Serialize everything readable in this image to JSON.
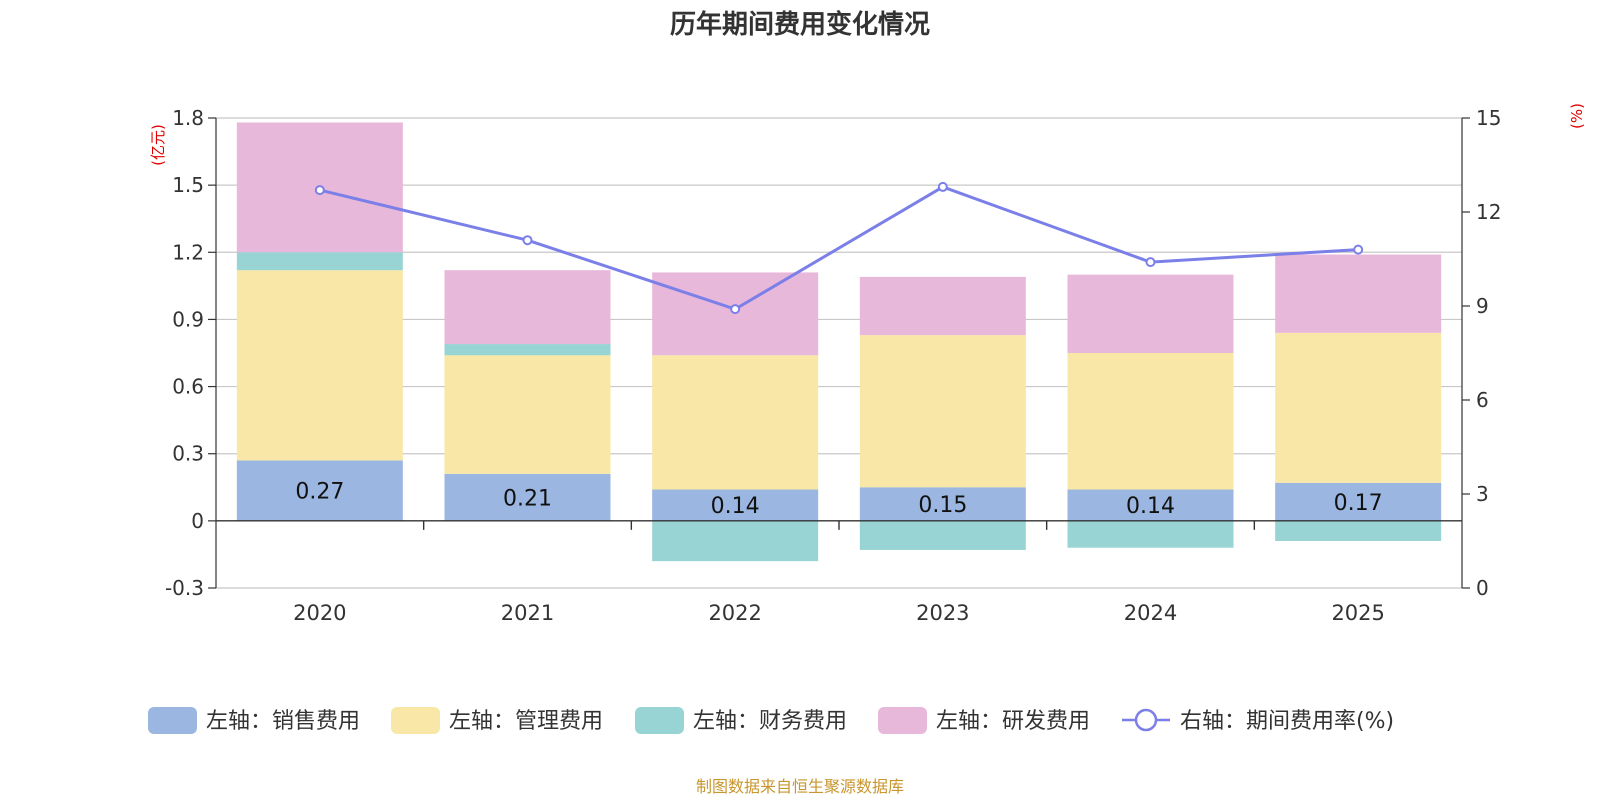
{
  "chart_data": {
    "type": "bar",
    "title": "历年期间费用变化情况",
    "left_unit": "(亿元)",
    "right_unit": "(%)",
    "categories": [
      "2020",
      "2021",
      "2022",
      "2023",
      "2024",
      "2025"
    ],
    "left_axis": {
      "ylim": [
        -0.3,
        1.8
      ],
      "ticks": [
        "1.8",
        "1.5",
        "1.2",
        "0.9",
        "0.6",
        "0.3",
        "0",
        "-0.3"
      ]
    },
    "right_axis": {
      "ylim": [
        0,
        15
      ],
      "ticks": [
        "15",
        "12",
        "9",
        "6",
        "3",
        "0"
      ]
    },
    "series": [
      {
        "name": "左轴：销售费用",
        "axis": "left",
        "kind": "bar",
        "color": "#9bb6e0",
        "values": [
          0.27,
          0.21,
          0.14,
          0.15,
          0.14,
          0.17
        ],
        "labels": [
          "0.27",
          "0.21",
          "0.14",
          "0.15",
          "0.14",
          "0.17"
        ]
      },
      {
        "name": "左轴：管理费用",
        "axis": "left",
        "kind": "bar",
        "color": "#f9e7a7",
        "values": [
          0.85,
          0.53,
          0.6,
          0.68,
          0.61,
          0.67
        ]
      },
      {
        "name": "左轴：财务费用",
        "axis": "left",
        "kind": "bar",
        "color": "#98d4d4",
        "values": [
          0.08,
          0.05,
          -0.18,
          -0.13,
          -0.12,
          -0.09
        ]
      },
      {
        "name": "左轴：研发费用",
        "axis": "left",
        "kind": "bar",
        "color": "#e8b8da",
        "values": [
          0.58,
          0.33,
          0.37,
          0.26,
          0.35,
          0.35
        ]
      },
      {
        "name": "右轴：期间费用率(%)",
        "axis": "right",
        "kind": "line",
        "color": "#7b7fe8",
        "values": [
          12.7,
          11.1,
          8.9,
          12.8,
          10.4,
          10.8
        ]
      }
    ],
    "source": "制图数据来自恒生聚源数据库"
  }
}
